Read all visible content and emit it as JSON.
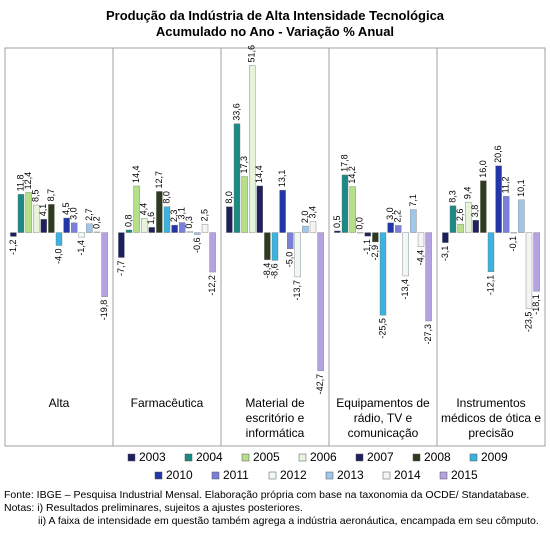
{
  "chart_data": {
    "type": "bar",
    "title": "Produção da Indústria de Alta Intensidade Tecnológica",
    "subtitle": "Acumulado no Ano - Variação % Anual",
    "categories": [
      "Alta",
      "Farmacêutica",
      "Material de escritório e informática",
      "Equipamentos de rádio, TV e comunicação",
      "Instrumentos médicos de ótica e precisão"
    ],
    "ylim": [
      -48,
      57
    ],
    "series": [
      {
        "name": "2003",
        "color": "#1b1f5e",
        "values": [
          -1.2,
          -7.7,
          8.0,
          0.5,
          -3.1
        ],
        "value_labels": [
          "-1,2",
          "-7,7",
          "8,0",
          "0,5",
          "-3,1"
        ]
      },
      {
        "name": "2004",
        "color": "#1a8a82",
        "values": [
          11.8,
          0.8,
          33.6,
          17.8,
          8.3
        ],
        "value_labels": [
          "11,8",
          "0,8",
          "33,6",
          "17,8",
          "8,3"
        ]
      },
      {
        "name": "2005",
        "color": "#b6df8a",
        "values": [
          12.4,
          14.4,
          17.3,
          14.2,
          2.6
        ],
        "value_labels": [
          "12,4",
          "14,4",
          "17,3",
          "14,2",
          "2,6"
        ]
      },
      {
        "name": "2006",
        "color": "#e6f4dc",
        "values": [
          8.5,
          4.4,
          51.6,
          0.0,
          9.4
        ],
        "value_labels": [
          "8,5",
          "4,4",
          "51,6",
          "0,0",
          "9,4"
        ]
      },
      {
        "name": "2007",
        "color": "#20205e",
        "values": [
          4.1,
          1.6,
          14.4,
          -1.1,
          3.8
        ],
        "value_labels": [
          "4,1",
          "1,6",
          "14,4",
          "-1,1",
          "3,8"
        ]
      },
      {
        "name": "2008",
        "color": "#2d3a1e",
        "values": [
          8.7,
          12.7,
          -8.4,
          -2.9,
          16.0
        ],
        "value_labels": [
          "8,7",
          "12,7",
          "-8,4",
          "-2,9",
          "16,0"
        ]
      },
      {
        "name": "2009",
        "color": "#3bb3e0",
        "values": [
          -4.0,
          8.0,
          -8.6,
          -25.5,
          -12.1
        ],
        "value_labels": [
          "-4,0",
          "8,0",
          "-8,6",
          "-25,5",
          "-12,1"
        ]
      },
      {
        "name": "2010",
        "color": "#2236a8",
        "values": [
          4.5,
          2.3,
          13.1,
          3.0,
          20.6
        ],
        "value_labels": [
          "4,5",
          "2,3",
          "13,1",
          "3,0",
          "20,6"
        ]
      },
      {
        "name": "2011",
        "color": "#7a80d8",
        "values": [
          3.0,
          3.1,
          -5.0,
          2.2,
          11.2
        ],
        "value_labels": [
          "3,0",
          "3,1",
          "-5,0",
          "2,2",
          "11,2"
        ]
      },
      {
        "name": "2012",
        "color": "#eef8f6",
        "values": [
          -1.4,
          0.3,
          -13.7,
          -13.4,
          -0.1
        ],
        "value_labels": [
          "-1,4",
          "0,3",
          "-13,7",
          "-13,4",
          "-0,1"
        ]
      },
      {
        "name": "2013",
        "color": "#9fc7ea",
        "values": [
          2.7,
          -0.6,
          2.0,
          7.1,
          10.1
        ],
        "value_labels": [
          "2,7",
          "-0,6",
          "2,0",
          "7,1",
          "10,1"
        ]
      },
      {
        "name": "2014",
        "color": "#f4f4f4",
        "values": [
          0.2,
          2.5,
          3.4,
          -4.4,
          -23.5
        ],
        "value_labels": [
          "0,2",
          "2,5",
          "3,4",
          "-4,4",
          "-23,5"
        ]
      },
      {
        "name": "2015",
        "color": "#b4a2e2",
        "values": [
          -19.8,
          -12.2,
          -42.7,
          -27.3,
          -18.1
        ],
        "value_labels": [
          "-19,8",
          "-12,2",
          "-42,7",
          "-27,3",
          "-18,1"
        ]
      }
    ],
    "notes": [
      "Fonte: IBGE – Pesquisa Industrial Mensal. Elaboração própria com base na taxonomia da OCDE/ Standatabase.",
      "Notas: i) Resultados preliminares, sujeitos a ajustes posteriores.",
      "ii) A faixa de intensidade em questão também agrega a indústria aeronáutica, encampada em seu cômputo."
    ]
  }
}
